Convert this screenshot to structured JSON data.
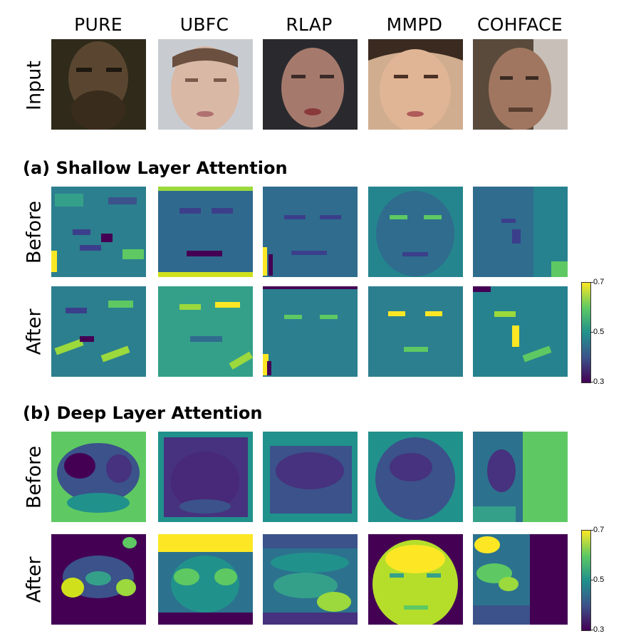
{
  "columns": [
    "PURE",
    "UBFC",
    "RLAP",
    "MMPD",
    "COHFACE"
  ],
  "row_input": "Input",
  "section_a": {
    "title": "(a) Shallow Layer Attention",
    "before_label": "Before",
    "after_label": "After"
  },
  "section_b": {
    "title": "(b) Deep Layer Attention",
    "before_label": "Before",
    "after_label": "After"
  },
  "colorbar": {
    "max_label": "0.7",
    "mid_label": "0.5",
    "min_label": "0.3"
  },
  "colors": {
    "viridis_dark": "#440154",
    "viridis_blue": "#3b528b",
    "viridis_teal": "#21918c",
    "viridis_green": "#5ec962",
    "viridis_yellow": "#fde725"
  }
}
